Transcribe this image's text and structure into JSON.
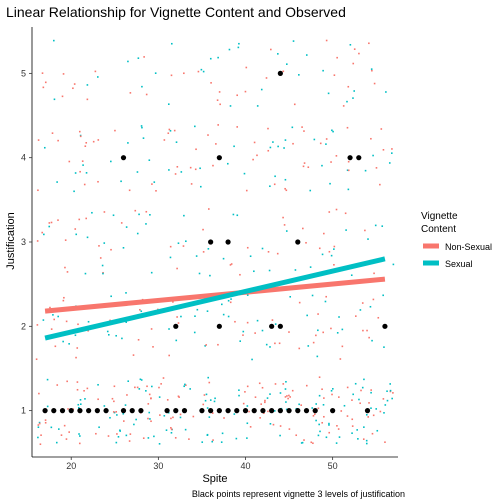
{
  "chart_data": {
    "type": "scatter",
    "title": "Linear Relationship for Vignette Content and Observed",
    "xlabel": "Spite",
    "ylabel": "Justification",
    "caption": "Black points represent vignette 3 levels of justification",
    "xlim": [
      15.5,
      57.5
    ],
    "ylim": [
      0.45,
      5.55
    ],
    "x_ticks": [
      20,
      30,
      40,
      50
    ],
    "y_ticks": [
      1,
      2,
      3,
      4,
      5
    ],
    "grid": false,
    "legend": {
      "title_lines": [
        "Vignette",
        "Content"
      ],
      "placement": "right",
      "entries": [
        {
          "name": "Non-Sexual",
          "color": "#F8766D"
        },
        {
          "name": "Sexual",
          "color": "#00BFC4"
        }
      ]
    },
    "series": [
      {
        "name": "Non-Sexual",
        "color": "#F8766D",
        "fit_line": {
          "x": [
            17,
            56
          ],
          "y": [
            2.18,
            2.56
          ]
        }
      },
      {
        "name": "Sexual",
        "color": "#00BFC4",
        "fit_line": {
          "x": [
            17,
            56
          ],
          "y": [
            1.86,
            2.8
          ]
        }
      }
    ],
    "jitter_points_note": "Many small jittered colored points around each integer justification level (1-5) across Spite 16-56",
    "highlight_points": {
      "color": "#000000",
      "points": [
        [
          17,
          1
        ],
        [
          18,
          1
        ],
        [
          19,
          1
        ],
        [
          20,
          1
        ],
        [
          21,
          1
        ],
        [
          22,
          1
        ],
        [
          23,
          1
        ],
        [
          24,
          1
        ],
        [
          26,
          1
        ],
        [
          27,
          1
        ],
        [
          28,
          1
        ],
        [
          31,
          1
        ],
        [
          32,
          1
        ],
        [
          33,
          1
        ],
        [
          35,
          1
        ],
        [
          36,
          1
        ],
        [
          37,
          1
        ],
        [
          38,
          1
        ],
        [
          39,
          1
        ],
        [
          40,
          1
        ],
        [
          41,
          1
        ],
        [
          42,
          1
        ],
        [
          43,
          1
        ],
        [
          44,
          1
        ],
        [
          45,
          1
        ],
        [
          46,
          1
        ],
        [
          47,
          1
        ],
        [
          48,
          1
        ],
        [
          50,
          1
        ],
        [
          54,
          1
        ],
        [
          32,
          2
        ],
        [
          37,
          2
        ],
        [
          43,
          2
        ],
        [
          44,
          2
        ],
        [
          56,
          2
        ],
        [
          36,
          3
        ],
        [
          38,
          3
        ],
        [
          46,
          3
        ],
        [
          26,
          4
        ],
        [
          37,
          4
        ],
        [
          52,
          4
        ],
        [
          53,
          4
        ],
        [
          44,
          5
        ]
      ]
    }
  }
}
